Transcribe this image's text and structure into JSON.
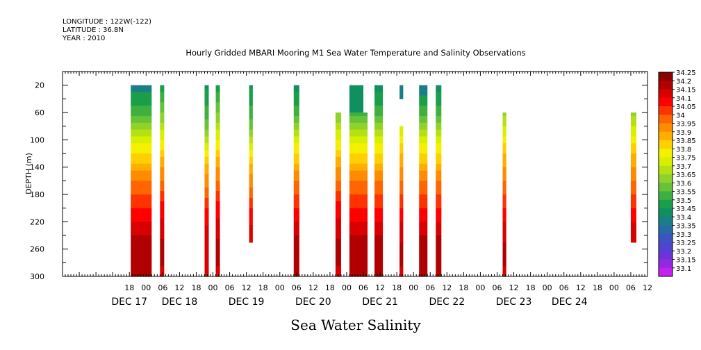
{
  "header": {
    "longitude": "LONGITUDE : 122W(-122)",
    "latitude": "LATITUDE : 36.8N",
    "year": "YEAR : 2010"
  },
  "chart_data": {
    "type": "heatmap",
    "title": "Hourly Gridded MBARI Mooring M1 Sea Water Temperature and Salinity Observations",
    "ylabel": "DEPTH (m)",
    "bottom_label": "Sea Water Salinity",
    "ylim": [
      300,
      0
    ],
    "y_ticks": [
      20,
      60,
      100,
      140,
      180,
      220,
      260,
      300
    ],
    "x_unit": "hours since DEC 17 00:00",
    "xlim": [
      -30,
      180
    ],
    "x_tick_labels": [
      {
        "t": -6,
        "label": "18"
      },
      {
        "t": 0,
        "label": "00"
      },
      {
        "t": 6,
        "label": "06"
      },
      {
        "t": 12,
        "label": "12"
      },
      {
        "t": 18,
        "label": "18"
      },
      {
        "t": 24,
        "label": "00"
      },
      {
        "t": 30,
        "label": "06"
      },
      {
        "t": 36,
        "label": "12"
      },
      {
        "t": 42,
        "label": "18"
      },
      {
        "t": 48,
        "label": "00"
      },
      {
        "t": 54,
        "label": "06"
      },
      {
        "t": 60,
        "label": "12"
      },
      {
        "t": 66,
        "label": "18"
      },
      {
        "t": 72,
        "label": "00"
      },
      {
        "t": 78,
        "label": "06"
      },
      {
        "t": 84,
        "label": "12"
      },
      {
        "t": 90,
        "label": "18"
      },
      {
        "t": 96,
        "label": "00"
      },
      {
        "t": 102,
        "label": "06"
      },
      {
        "t": 108,
        "label": "12"
      },
      {
        "t": 114,
        "label": "18"
      },
      {
        "t": 120,
        "label": "00"
      },
      {
        "t": 126,
        "label": "06"
      },
      {
        "t": 132,
        "label": "12"
      },
      {
        "t": 138,
        "label": "18"
      },
      {
        "t": 144,
        "label": "00"
      },
      {
        "t": 150,
        "label": "06"
      },
      {
        "t": 156,
        "label": "12"
      },
      {
        "t": 162,
        "label": "18"
      },
      {
        "t": 168,
        "label": "00"
      },
      {
        "t": 174,
        "label": "06"
      },
      {
        "t": 180,
        "label": "12"
      }
    ],
    "date_labels": [
      {
        "t": -6,
        "label": "DEC 17"
      },
      {
        "t": 12,
        "label": "DEC 18"
      },
      {
        "t": 36,
        "label": "DEC 19"
      },
      {
        "t": 60,
        "label": "DEC 20"
      },
      {
        "t": 84,
        "label": "DEC 21"
      },
      {
        "t": 108,
        "label": "DEC 22"
      },
      {
        "t": 132,
        "label": "DEC 23"
      },
      {
        "t": 152,
        "label": "DEC 24"
      }
    ],
    "depth_levels": [
      20,
      40,
      60,
      80,
      100,
      120,
      140,
      160,
      180,
      200,
      220,
      240,
      260,
      280,
      300
    ],
    "profiles": {
      "A": [
        33.45,
        33.5,
        33.55,
        33.65,
        33.75,
        33.82,
        33.9,
        33.97,
        34.03,
        34.08,
        34.12,
        34.17,
        34.22,
        34.2,
        34.18
      ],
      "B": [
        33.5,
        33.55,
        33.62,
        33.7,
        33.78,
        33.85,
        33.92,
        33.98,
        34.05,
        34.1,
        34.13,
        34.17,
        34.2,
        34.18,
        34.16
      ],
      "C": [
        33.47,
        33.5,
        33.55,
        33.6,
        33.7,
        33.8,
        33.9,
        33.95,
        34.0,
        34.07,
        34.12,
        34.15,
        34.17,
        34.15,
        34.14
      ],
      "D": [
        33.55,
        33.6,
        33.65,
        33.73,
        33.8,
        33.87,
        33.93,
        33.98,
        34.03,
        34.08,
        34.12,
        34.16,
        34.2,
        34.18,
        34.16
      ]
    },
    "columns": [
      {
        "t0": -5.5,
        "t1": 2,
        "profile": "A",
        "zmin": 20,
        "zmax": 300,
        "bands": [
          {
            "z0": 20,
            "z1": 30,
            "v": 33.4
          }
        ]
      },
      {
        "t0": 5,
        "t1": 6.5,
        "profile": "B",
        "zmin": 20,
        "zmax": 300
      },
      {
        "t0": 21,
        "t1": 22.5,
        "profile": "C",
        "zmin": 20,
        "zmax": 300
      },
      {
        "t0": 25,
        "t1": 26.5,
        "profile": "B",
        "zmin": 20,
        "zmax": 300
      },
      {
        "t0": 37,
        "t1": 38.3,
        "profile": "C",
        "zmin": 20,
        "zmax": 250
      },
      {
        "t0": 53,
        "t1": 55,
        "profile": "A",
        "zmin": 20,
        "zmax": 300
      },
      {
        "t0": 68,
        "t1": 70,
        "profile": "B",
        "zmin": 60,
        "zmax": 300
      },
      {
        "t0": 73,
        "t1": 78,
        "profile": "A",
        "zmin": 20,
        "zmax": 300,
        "bands": [
          {
            "z0": 20,
            "z1": 60,
            "v": 33.47
          }
        ]
      },
      {
        "t0": 78,
        "t1": 79.5,
        "profile": "A",
        "zmin": 60,
        "zmax": 300
      },
      {
        "t0": 82,
        "t1": 85,
        "profile": "A",
        "zmin": 20,
        "zmax": 300
      },
      {
        "t0": 91,
        "t1": 92.3,
        "profile": "D",
        "zmin": 20,
        "zmax": 40,
        "bands": [
          {
            "z0": 20,
            "z1": 40,
            "v": 33.4
          }
        ]
      },
      {
        "t0": 91,
        "t1": 92.3,
        "profile": "D",
        "zmin": 80,
        "zmax": 300
      },
      {
        "t0": 98,
        "t1": 101,
        "profile": "A",
        "zmin": 20,
        "zmax": 300,
        "bands": [
          {
            "z0": 20,
            "z1": 35,
            "v": 33.4
          }
        ]
      },
      {
        "t0": 104,
        "t1": 106,
        "profile": "A",
        "zmin": 20,
        "zmax": 300
      },
      {
        "t0": 128,
        "t1": 129.3,
        "profile": "D",
        "zmin": 60,
        "zmax": 300
      },
      {
        "t0": 174,
        "t1": 176,
        "profile": "D",
        "zmin": 60,
        "zmax": 250
      }
    ],
    "colorbar": {
      "levels": [
        "34.25",
        "34.2",
        "34.15",
        "34.1",
        "34.05",
        "34",
        "33.95",
        "33.9",
        "33.85",
        "33.8",
        "33.75",
        "33.7",
        "33.65",
        "33.6",
        "33.55",
        "33.5",
        "33.45",
        "33.4",
        "33.35",
        "33.3",
        "33.25",
        "33.2",
        "33.15",
        "33.1"
      ],
      "colors": [
        "#8b0000",
        "#b00000",
        "#d80000",
        "#ff0000",
        "#ff3300",
        "#ff6600",
        "#ff8c00",
        "#ffae00",
        "#ffd000",
        "#f5f000",
        "#d7f000",
        "#b6e014",
        "#8fd22a",
        "#66c236",
        "#3fb040",
        "#1a9e4a",
        "#109060",
        "#1a7e88",
        "#286aa8",
        "#3a55c0",
        "#4e44d0",
        "#6a34d8",
        "#9428e0",
        "#c81ef0"
      ]
    }
  }
}
